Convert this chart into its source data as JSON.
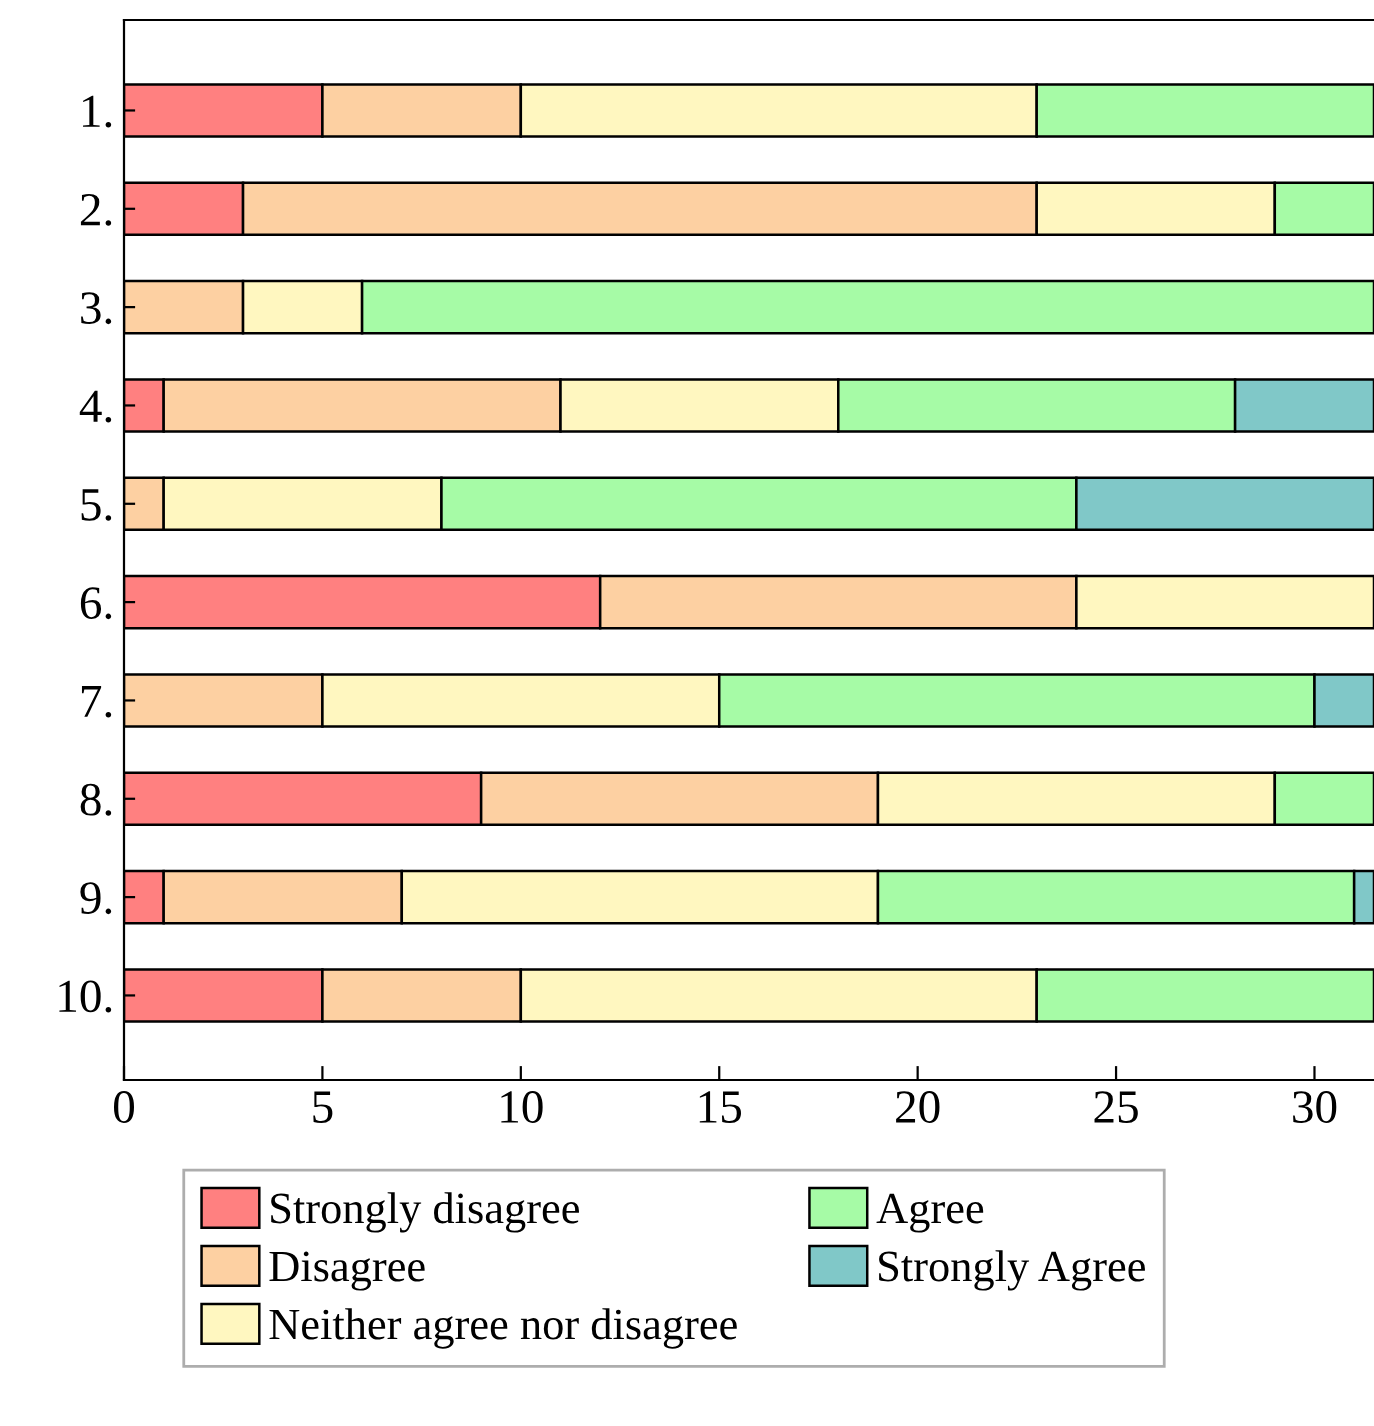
{
  "chart_data": {
    "type": "bar",
    "orientation": "horizontal",
    "stacked": true,
    "categories": [
      "1.",
      "2.",
      "3.",
      "4.",
      "5.",
      "6.",
      "7.",
      "8.",
      "9.",
      "10."
    ],
    "series": [
      {
        "name": "Strongly disagree",
        "color": "#ff8080",
        "values": [
          5,
          3,
          0,
          1,
          0,
          12,
          0,
          9,
          1,
          5
        ]
      },
      {
        "name": "Disagree",
        "color": "#fdd0a2",
        "values": [
          5,
          20,
          3,
          10,
          1,
          12,
          5,
          10,
          6,
          5
        ]
      },
      {
        "name": "Neither agree nor disagree",
        "color": "#fff7c0",
        "values": [
          13,
          6,
          3,
          7,
          7,
          7.5,
          10,
          10,
          12,
          13
        ]
      },
      {
        "name": "Agree",
        "color": "#a6fba6",
        "values": [
          8.5,
          2.5,
          25.5,
          10,
          16,
          0,
          15,
          2.5,
          12,
          8.5
        ]
      },
      {
        "name": "Strongly Agree",
        "color": "#80c8c8",
        "values": [
          0,
          0,
          0,
          3.5,
          7.5,
          0,
          1.5,
          0,
          0.5,
          0
        ]
      }
    ],
    "xlim": [
      0,
      31.5
    ],
    "xticks": [
      0,
      5,
      10,
      15,
      20,
      25,
      30
    ],
    "legend": "bottom",
    "grid": false
  }
}
